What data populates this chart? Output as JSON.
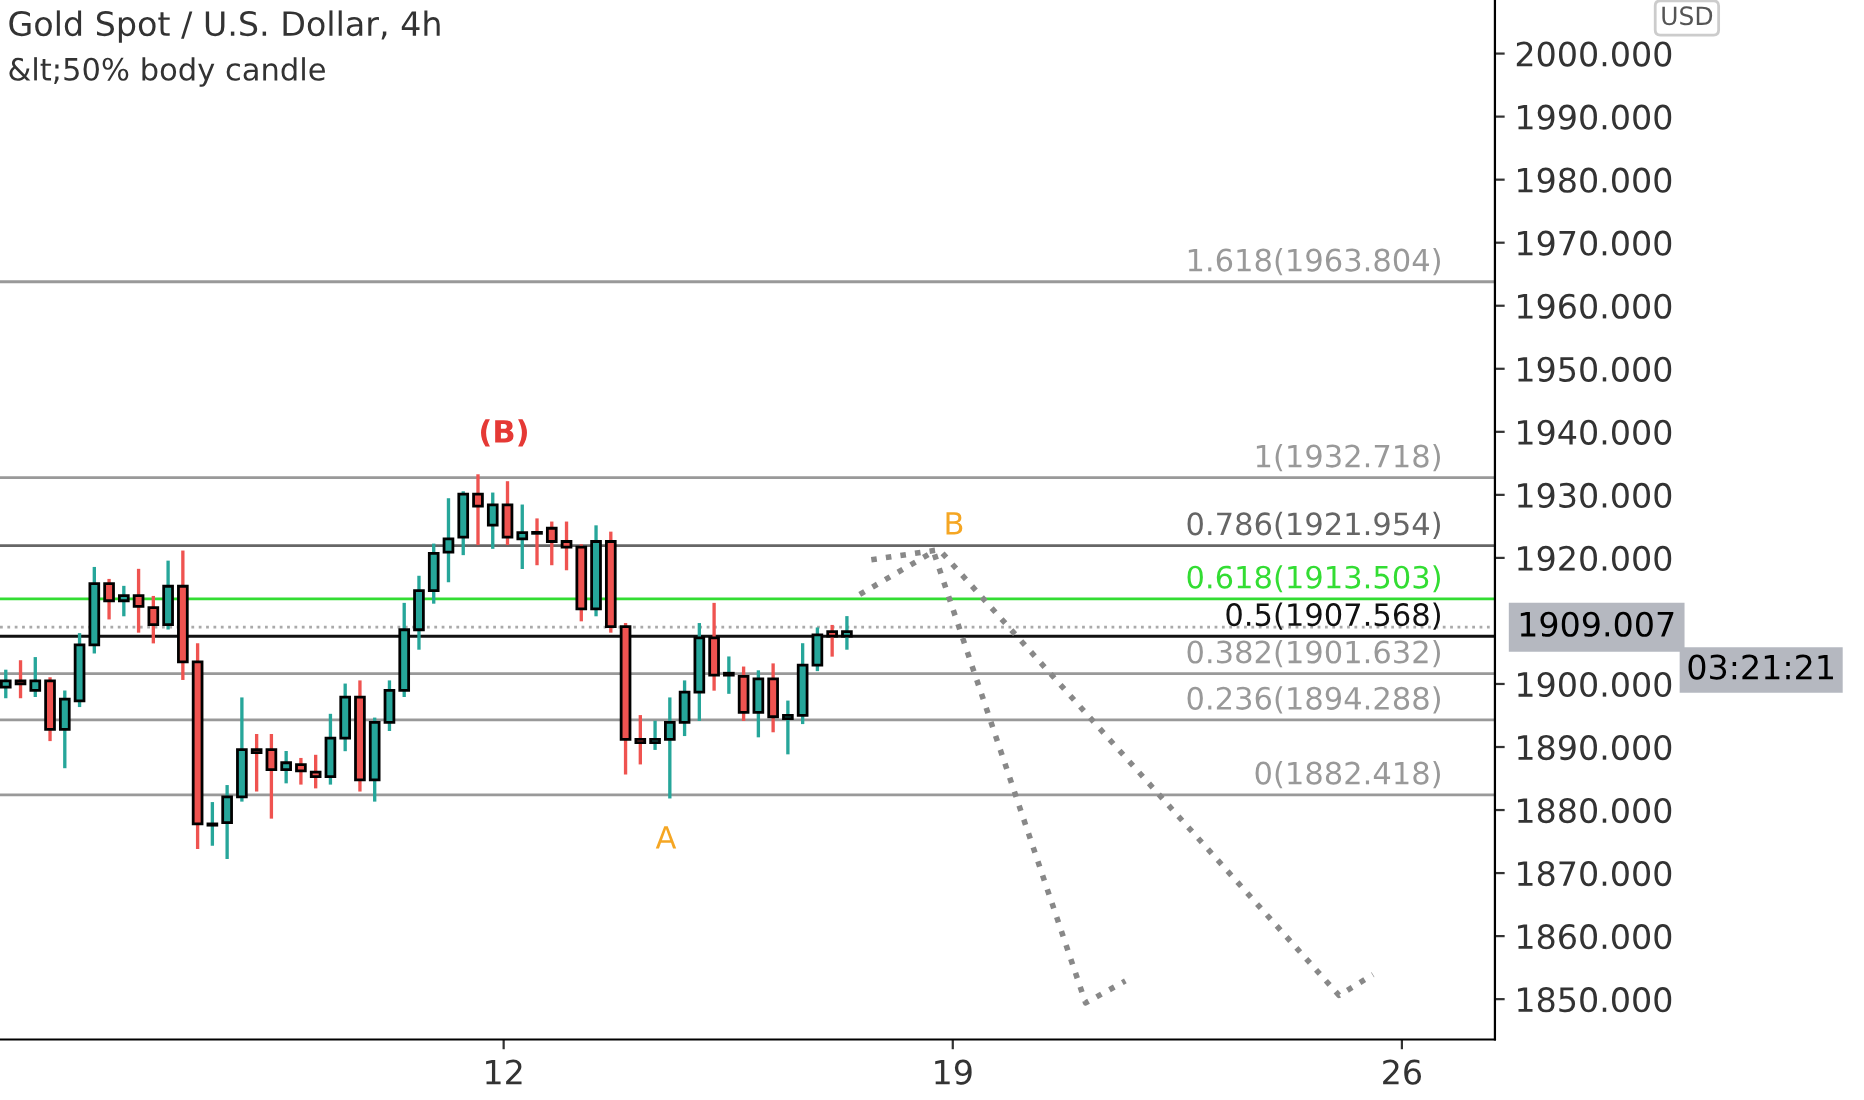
{
  "chart_data": {
    "type": "candlestick",
    "title": "Gold Spot / U.S. Dollar, 4h",
    "subtitle": "&lt;50% body candle",
    "x": [
      4.24,
      4.47,
      4.7,
      4.93,
      5.16,
      5.39,
      5.62,
      5.85,
      6.08,
      6.31,
      6.54,
      6.77,
      7.0,
      7.23,
      7.46,
      7.69,
      7.92,
      8.15,
      8.38,
      8.61,
      8.84,
      9.07,
      9.3,
      9.53,
      9.76,
      9.99,
      10.22,
      10.45,
      10.68,
      10.91,
      11.14,
      11.37,
      11.6,
      11.83,
      12.06,
      12.29,
      12.52,
      12.75,
      12.98,
      13.21,
      13.44,
      13.67,
      13.9,
      14.13,
      14.36,
      14.59,
      14.82,
      15.05,
      15.28,
      15.51,
      15.74,
      15.97,
      16.2,
      16.43,
      16.66,
      16.89,
      17.12,
      17.35
    ],
    "ohlc": [
      [
        1899.5,
        1902,
        1898,
        1900.5
      ],
      [
        1900.5,
        1903.5,
        1898,
        1900
      ],
      [
        1899,
        1904,
        1898.2,
        1900.5
      ],
      [
        1900.5,
        1900.8,
        1891.2,
        1892.8
      ],
      [
        1892.8,
        1898.7,
        1886.9,
        1897.6
      ],
      [
        1897.3,
        1907.8,
        1896.6,
        1906.2
      ],
      [
        1906.2,
        1918.3,
        1905.1,
        1915.9
      ],
      [
        1915.9,
        1916.4,
        1910.5,
        1913.2
      ],
      [
        1913.2,
        1915.3,
        1911.0,
        1914.0
      ],
      [
        1914.0,
        1918.0,
        1908.4,
        1912.3
      ],
      [
        1912.1,
        1913.7,
        1906.7,
        1909.4
      ],
      [
        1909.4,
        1919.3,
        1908.9,
        1915.5
      ],
      [
        1915.5,
        1920.9,
        1900.9,
        1903.5
      ],
      [
        1903.5,
        1906.2,
        1874.1,
        1877.8
      ],
      [
        1877.6,
        1881.0,
        1874.6,
        1877.8
      ],
      [
        1878.0,
        1883.7,
        1872.5,
        1882.1
      ],
      [
        1882.1,
        1897.6,
        1881.6,
        1889.6
      ],
      [
        1889.6,
        1891.8,
        1883.2,
        1889.1
      ],
      [
        1889.6,
        1891.8,
        1878.9,
        1886.4
      ],
      [
        1886.4,
        1889.1,
        1884.5,
        1887.5
      ],
      [
        1887.2,
        1888.0,
        1884.3,
        1886.2
      ],
      [
        1886.0,
        1888.5,
        1883.7,
        1885.3
      ],
      [
        1885.3,
        1895.0,
        1884.3,
        1891.4
      ],
      [
        1891.4,
        1899.8,
        1889.6,
        1897.9
      ],
      [
        1897.9,
        1900.3,
        1883.2,
        1884.8
      ],
      [
        1884.8,
        1894.4,
        1881.6,
        1893.9
      ],
      [
        1893.9,
        1900.3,
        1892.8,
        1899.0
      ],
      [
        1899.0,
        1912.6,
        1898.2,
        1908.6
      ],
      [
        1908.6,
        1916.9,
        1905.7,
        1914.8
      ],
      [
        1914.8,
        1922,
        1913,
        1920.7
      ],
      [
        1920.9,
        1929.2,
        1916.4,
        1923.0
      ],
      [
        1923.3,
        1930.3,
        1920.7,
        1930.1
      ],
      [
        1930.1,
        1933.0,
        1922.3,
        1928.2
      ],
      [
        1925.2,
        1930.1,
        1921.7,
        1928.4
      ],
      [
        1928.4,
        1931.9,
        1922.3,
        1923.3
      ],
      [
        1923.0,
        1928.2,
        1918.5,
        1924.0
      ],
      [
        1924.0,
        1926.0,
        1919.1,
        1923.9
      ],
      [
        1924.7,
        1925.5,
        1919.1,
        1922.6
      ],
      [
        1922.6,
        1925.5,
        1918.3,
        1921.7
      ],
      [
        1921.7,
        1921.9,
        1910.2,
        1911.9
      ],
      [
        1911.9,
        1924.9,
        1911.0,
        1922.6
      ],
      [
        1922.6,
        1923.9,
        1908.4,
        1909.1
      ],
      [
        1909.1,
        1909.4,
        1885.9,
        1891.2
      ],
      [
        1891.2,
        1894.8,
        1887.5,
        1890.7
      ],
      [
        1890.7,
        1893.9,
        1889.8,
        1891.2
      ],
      [
        1891.2,
        1897.6,
        1882.1,
        1893.9
      ],
      [
        1893.9,
        1900.3,
        1892.0,
        1898.7
      ],
      [
        1898.7,
        1909.4,
        1894.4,
        1907.3
      ],
      [
        1907.3,
        1912.6,
        1899.2,
        1901.4
      ],
      [
        1901.4,
        1904.1,
        1898.7,
        1901.7
      ],
      [
        1901.2,
        1902.5,
        1894.4,
        1895.5
      ],
      [
        1895.5,
        1901.9,
        1891.8,
        1900.8
      ],
      [
        1900.8,
        1903.0,
        1892.6,
        1894.8
      ],
      [
        1894.5,
        1897.1,
        1889.1,
        1895.0
      ],
      [
        1895.0,
        1906.2,
        1893.9,
        1903.0
      ],
      [
        1903.0,
        1908.7,
        1902.3,
        1907.8
      ],
      [
        1908.3,
        1909.1,
        1904.6,
        1907.6
      ],
      [
        1907.6,
        1910.5,
        1905.7,
        1908.3
      ]
    ],
    "colors": [
      "#26a69a",
      "#ef5350",
      "#26a69a",
      "#ef5350",
      "#26a69a",
      "#26a69a",
      "#26a69a",
      "#ef5350",
      "#26a69a",
      "#ef5350",
      "#ef5350",
      "#26a69a",
      "#ef5350",
      "#ef5350",
      "#26a69a",
      "#26a69a",
      "#26a69a",
      "#ef5350",
      "#ef5350",
      "#26a69a",
      "#ef5350",
      "#ef5350",
      "#26a69a",
      "#26a69a",
      "#ef5350",
      "#26a69a",
      "#26a69a",
      "#26a69a",
      "#26a69a",
      "#26a69a",
      "#26a69a",
      "#26a69a",
      "#ef5350",
      "#26a69a",
      "#ef5350",
      "#26a69a",
      "#ef5350",
      "#ef5350",
      "#ef5350",
      "#ef5350",
      "#26a69a",
      "#ef5350",
      "#ef5350",
      "#ef5350",
      "#26a69a",
      "#26a69a",
      "#26a69a",
      "#26a69a",
      "#ef5350",
      "#26a69a",
      "#ef5350",
      "#26a69a",
      "#ef5350",
      "#26a69a",
      "#26a69a",
      "#26a69a",
      "#ef5350",
      "#26a69a"
    ],
    "series": [
      {
        "type": "line",
        "color": "#888888",
        "line_style": "dotted",
        "x": [
          17.55,
          18.7,
          21.07,
          21.69
        ],
        "values": [
          1914.2,
          1921.0,
          1849.4,
          1852.9
        ]
      },
      {
        "type": "line",
        "color": "#888888",
        "line_style": "dotted",
        "x": [
          17.73,
          18.79,
          25.02,
          25.55
        ],
        "values": [
          1919.7,
          1921.3,
          1850.6,
          1853.9
        ]
      }
    ],
    "ref_lines": [
      {
        "axis": "y",
        "value": 1963.804,
        "label": "1.618(1963.804)",
        "color": "#999999"
      },
      {
        "axis": "y",
        "value": 1932.718,
        "label": "1(1932.718)",
        "color": "#999999"
      },
      {
        "axis": "y",
        "value": 1921.954,
        "label": "0.786(1921.954)",
        "color": "#666666"
      },
      {
        "axis": "y",
        "value": 1913.503,
        "label": "0.618(1913.503)",
        "color": "#33dd33"
      },
      {
        "axis": "y",
        "value": 1907.568,
        "label": "0.5(1907.568)",
        "color": "#111111"
      },
      {
        "axis": "y",
        "value": 1901.632,
        "label": "0.382(1901.632)",
        "color": "#999999"
      },
      {
        "axis": "y",
        "value": 1894.288,
        "label": "0.236(1894.288)",
        "color": "#999999"
      },
      {
        "axis": "y",
        "value": 1882.418,
        "label": "0(1882.418)",
        "color": "#999999"
      },
      {
        "axis": "y",
        "value": 1909.007,
        "label": "1909.007",
        "color": "#aaaaaa",
        "line_style": "dotted"
      }
    ],
    "annotations": [
      "(B)",
      "A",
      "B",
      "03:21:21",
      "USD"
    ],
    "xlim": [
      4.15,
      27.45
    ],
    "ylim": [
      1843.6,
      2008.5
    ],
    "xticks": [
      12,
      19,
      26
    ],
    "yticks": [
      {
        "value": 1850,
        "label": "1850.000"
      },
      {
        "value": 1860,
        "label": "1860.000"
      },
      {
        "value": 1870,
        "label": "1870.000"
      },
      {
        "value": 1880,
        "label": "1880.000"
      },
      {
        "value": 1890,
        "label": "1890.000"
      },
      {
        "value": 1900,
        "label": "1900.000"
      },
      {
        "value": 1920,
        "label": "1920.000"
      },
      {
        "value": 1930,
        "label": "1930.000"
      },
      {
        "value": 1940,
        "label": "1940.000"
      },
      {
        "value": 1950,
        "label": "1950.000"
      },
      {
        "value": 1960,
        "label": "1960.000"
      },
      {
        "value": 1970,
        "label": "1970.000"
      },
      {
        "value": 1980,
        "label": "1980.000"
      },
      {
        "value": 1990,
        "label": "1990.000"
      },
      {
        "value": 2000,
        "label": "2000.000"
      }
    ],
    "grid": false,
    "legend": false
  }
}
